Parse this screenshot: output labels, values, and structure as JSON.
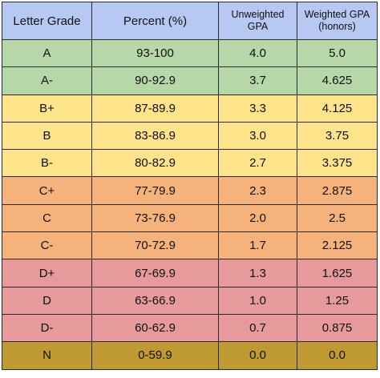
{
  "headers": {
    "letter_grade": "Letter Grade",
    "percent": "Percent (%)",
    "unweighted_line1": "Unweighted",
    "unweighted_line2": "GPA",
    "weighted_line1": "Weighted GPA",
    "weighted_line2": "(honors)"
  },
  "colors": {
    "header": "#b7c8f3",
    "tier_a": "#b6d7a8",
    "tier_b": "#fde38a",
    "tier_c": "#f5b27a",
    "tier_d": "#e69a9c",
    "tier_n": "#bf9a30"
  },
  "rows": [
    {
      "grade": "A",
      "percent": "93-100",
      "unweighted": "4.0",
      "weighted": "5.0",
      "tier": "a"
    },
    {
      "grade": "A-",
      "percent": "90-92.9",
      "unweighted": "3.7",
      "weighted": "4.625",
      "tier": "a"
    },
    {
      "grade": "B+",
      "percent": "87-89.9",
      "unweighted": "3.3",
      "weighted": "4.125",
      "tier": "b"
    },
    {
      "grade": "B",
      "percent": "83-86.9",
      "unweighted": "3.0",
      "weighted": "3.75",
      "tier": "b"
    },
    {
      "grade": "B-",
      "percent": "80-82.9",
      "unweighted": "2.7",
      "weighted": "3.375",
      "tier": "b"
    },
    {
      "grade": "C+",
      "percent": "77-79.9",
      "unweighted": "2.3",
      "weighted": "2.875",
      "tier": "c"
    },
    {
      "grade": "C",
      "percent": "73-76.9",
      "unweighted": "2.0",
      "weighted": "2.5",
      "tier": "c"
    },
    {
      "grade": "C-",
      "percent": "70-72.9",
      "unweighted": "1.7",
      "weighted": "2.125",
      "tier": "c"
    },
    {
      "grade": "D+",
      "percent": "67-69.9",
      "unweighted": "1.3",
      "weighted": "1.625",
      "tier": "d"
    },
    {
      "grade": "D",
      "percent": "63-66.9",
      "unweighted": "1.0",
      "weighted": "1.25",
      "tier": "d"
    },
    {
      "grade": "D-",
      "percent": "60-62.9",
      "unweighted": "0.7",
      "weighted": "0.875",
      "tier": "d"
    },
    {
      "grade": "N",
      "percent": "0-59.9",
      "unweighted": "0.0",
      "weighted": "0.0",
      "tier": "n"
    }
  ]
}
